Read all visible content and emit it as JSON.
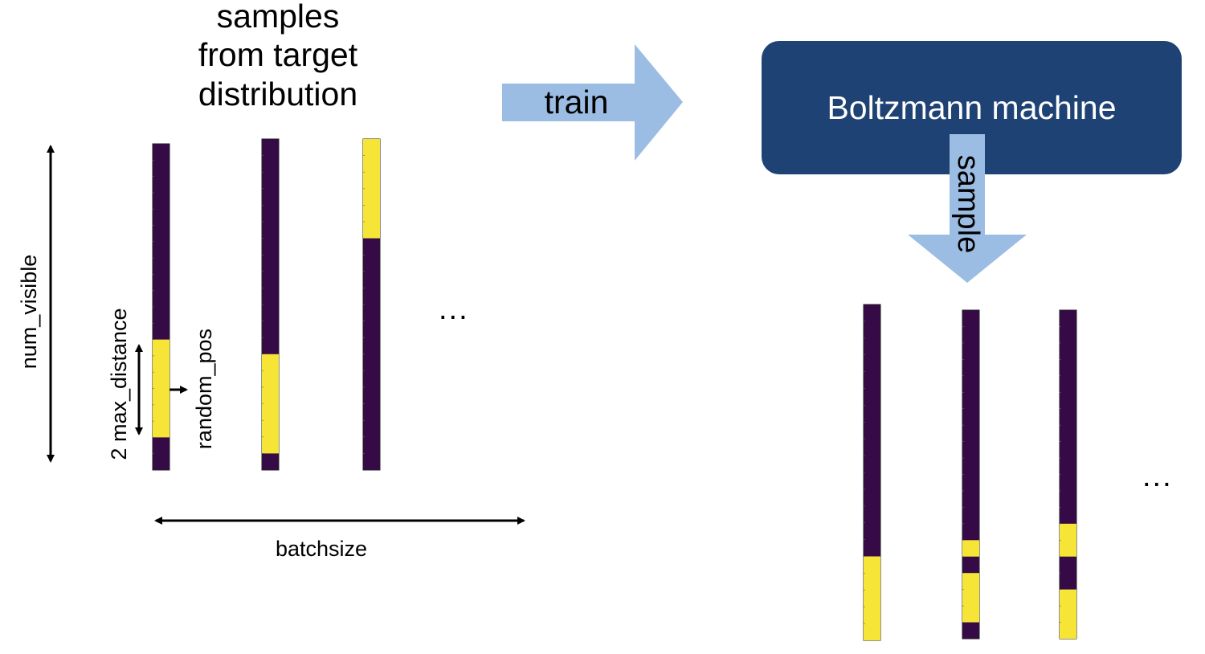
{
  "title_lines": [
    "samples",
    "from target",
    "distribution"
  ],
  "train_label": "train",
  "model_label": "Boltzmann machine",
  "sample_label": "sample",
  "labels": {
    "num_visible": "num_visible",
    "max_distance": "2 max_distance",
    "random_pos": "random_pos",
    "batchsize": "batchsize",
    "ellipsis_left": "...",
    "ellipsis_right": "..."
  },
  "colors": {
    "off": "#360a47",
    "on": "#f6e537",
    "arrow": "#9cbde3",
    "box": "#1f4274",
    "box_text": "#ffffff"
  },
  "bits": {
    "training_samples": [
      {
        "length": 20,
        "on": [
          [
            12,
            18
          ]
        ]
      },
      {
        "length": 20,
        "on": [
          [
            13,
            19
          ]
        ]
      },
      {
        "length": 20,
        "on": [
          [
            0,
            6
          ]
        ]
      }
    ],
    "generated_samples": [
      {
        "length": 20,
        "on": [
          [
            15,
            20
          ]
        ]
      },
      {
        "length": 20,
        "on": [
          [
            14,
            15
          ],
          [
            16,
            19
          ]
        ]
      },
      {
        "length": 20,
        "on": [
          [
            13,
            15
          ],
          [
            17,
            20
          ]
        ]
      }
    ]
  }
}
